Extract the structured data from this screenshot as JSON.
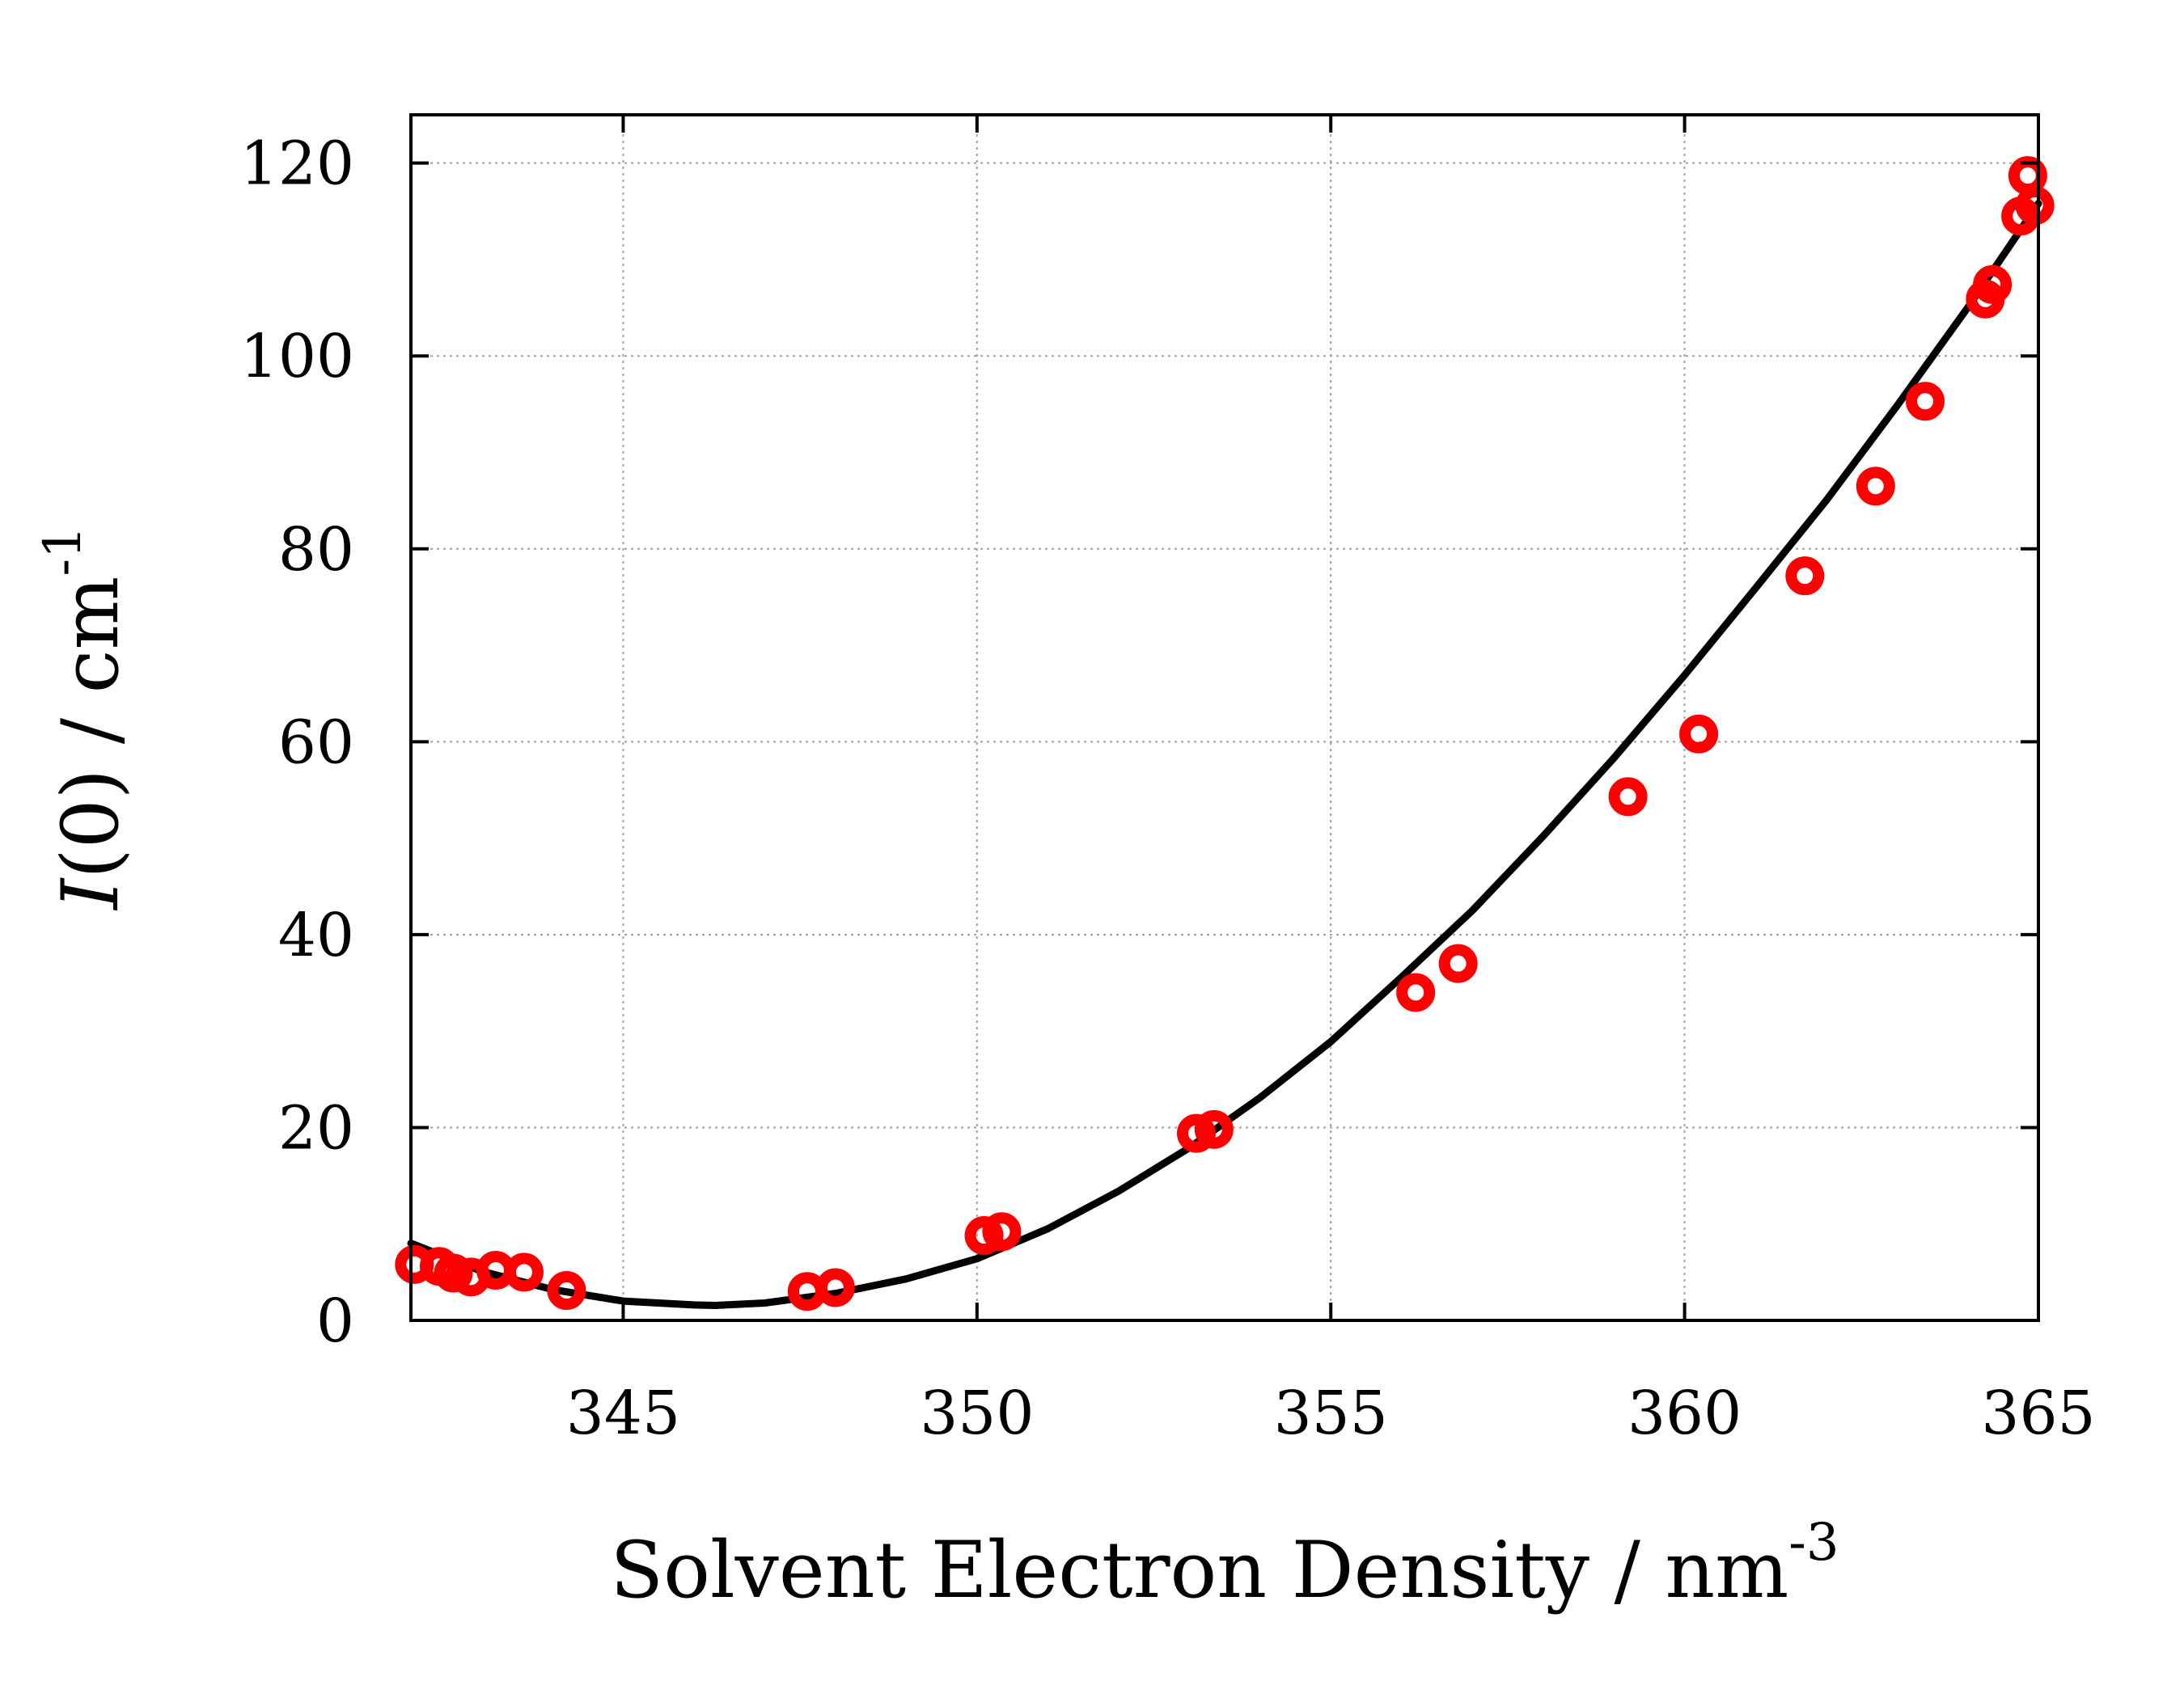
{
  "chart_data": {
    "type": "scatter",
    "title": "",
    "xlabel": {
      "text": "Solvent Electron Density / nm",
      "superscript": "-3"
    },
    "ylabel": {
      "italic": "I",
      "text": "(0) / cm",
      "superscript": "-1"
    },
    "xlim": [
      342,
      365
    ],
    "ylim": [
      0,
      125
    ],
    "x_ticks": [
      345,
      350,
      355,
      360,
      365
    ],
    "y_ticks": [
      0,
      20,
      40,
      60,
      80,
      100,
      120
    ],
    "grid": true,
    "legend": "none",
    "colors": {
      "points": "#ff0000",
      "fit": "#000000",
      "grid": "#a0a0a0"
    },
    "series": [
      {
        "type": "scatter",
        "marker": "open-circle",
        "x": [
          342.05,
          342.4,
          342.6,
          342.85,
          343.2,
          343.6,
          344.2,
          347.6,
          348.0,
          350.1,
          350.35,
          353.1,
          353.35,
          356.2,
          356.8,
          359.2,
          360.2,
          361.7,
          362.7,
          363.4,
          364.25,
          364.35,
          364.75,
          364.85,
          364.95
        ],
        "y": [
          5.8,
          5.6,
          4.9,
          4.5,
          5.2,
          5.0,
          3.1,
          3.0,
          3.4,
          8.8,
          9.2,
          19.4,
          19.8,
          34.0,
          37.0,
          54.3,
          60.8,
          77.2,
          86.5,
          95.3,
          105.9,
          107.4,
          114.5,
          118.7,
          115.6
        ]
      },
      {
        "type": "line",
        "style": "solid",
        "x": [
          342.0,
          343.0,
          344.0,
          345.0,
          346.0,
          346.3,
          347.0,
          348.0,
          349.0,
          350.0,
          351.0,
          352.0,
          353.0,
          354.0,
          355.0,
          356.0,
          357.0,
          358.0,
          359.0,
          360.0,
          361.0,
          362.0,
          363.0,
          364.0,
          365.0
        ],
        "y": [
          8.0,
          5.1,
          3.2,
          2.0,
          1.6,
          1.55,
          1.8,
          2.8,
          4.3,
          6.4,
          9.5,
          13.4,
          17.9,
          23.1,
          28.9,
          35.6,
          42.5,
          50.2,
          58.3,
          66.9,
          75.9,
          85.0,
          94.8,
          105.0,
          115.8
        ]
      }
    ]
  }
}
